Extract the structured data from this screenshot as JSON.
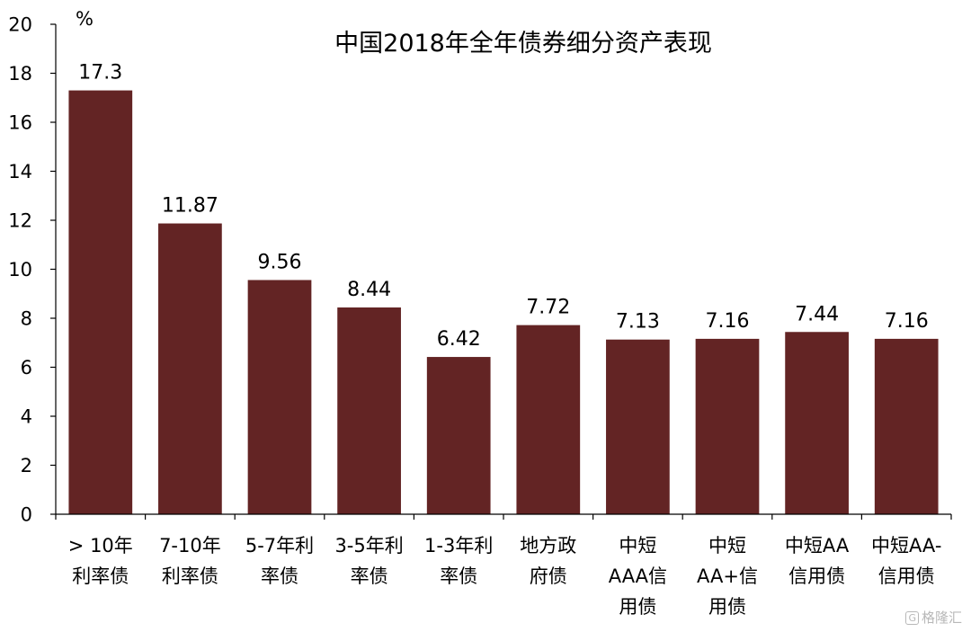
{
  "chart_data": {
    "type": "bar",
    "title": "中国2018年全年债券细分资产表现",
    "unit_label": "%",
    "categories": [
      [
        "> 10年",
        "利率债"
      ],
      [
        "7-10年",
        "利率债"
      ],
      [
        "5-7年利",
        "率债"
      ],
      [
        "3-5年利",
        "率债"
      ],
      [
        "1-3年利",
        "率债"
      ],
      [
        "地方政",
        "府债"
      ],
      [
        "中短",
        "AAA信",
        "用债"
      ],
      [
        "中短",
        "AA+信",
        "用债"
      ],
      [
        "中短AA",
        "信用债"
      ],
      [
        "中短AA-",
        "信用债"
      ]
    ],
    "values": [
      17.3,
      11.87,
      9.56,
      8.44,
      6.42,
      7.72,
      7.13,
      7.16,
      7.44,
      7.16
    ],
    "value_labels": [
      "17.3",
      "11.87",
      "9.56",
      "8.44",
      "6.42",
      "7.72",
      "7.13",
      "7.16",
      "7.44",
      "7.16"
    ],
    "yticks": [
      0,
      2,
      4,
      6,
      8,
      10,
      12,
      14,
      16,
      18,
      20
    ],
    "ylim": [
      0,
      20
    ],
    "grid": false,
    "legend": "none",
    "bar_color": "#632424"
  },
  "watermark": "格隆汇"
}
